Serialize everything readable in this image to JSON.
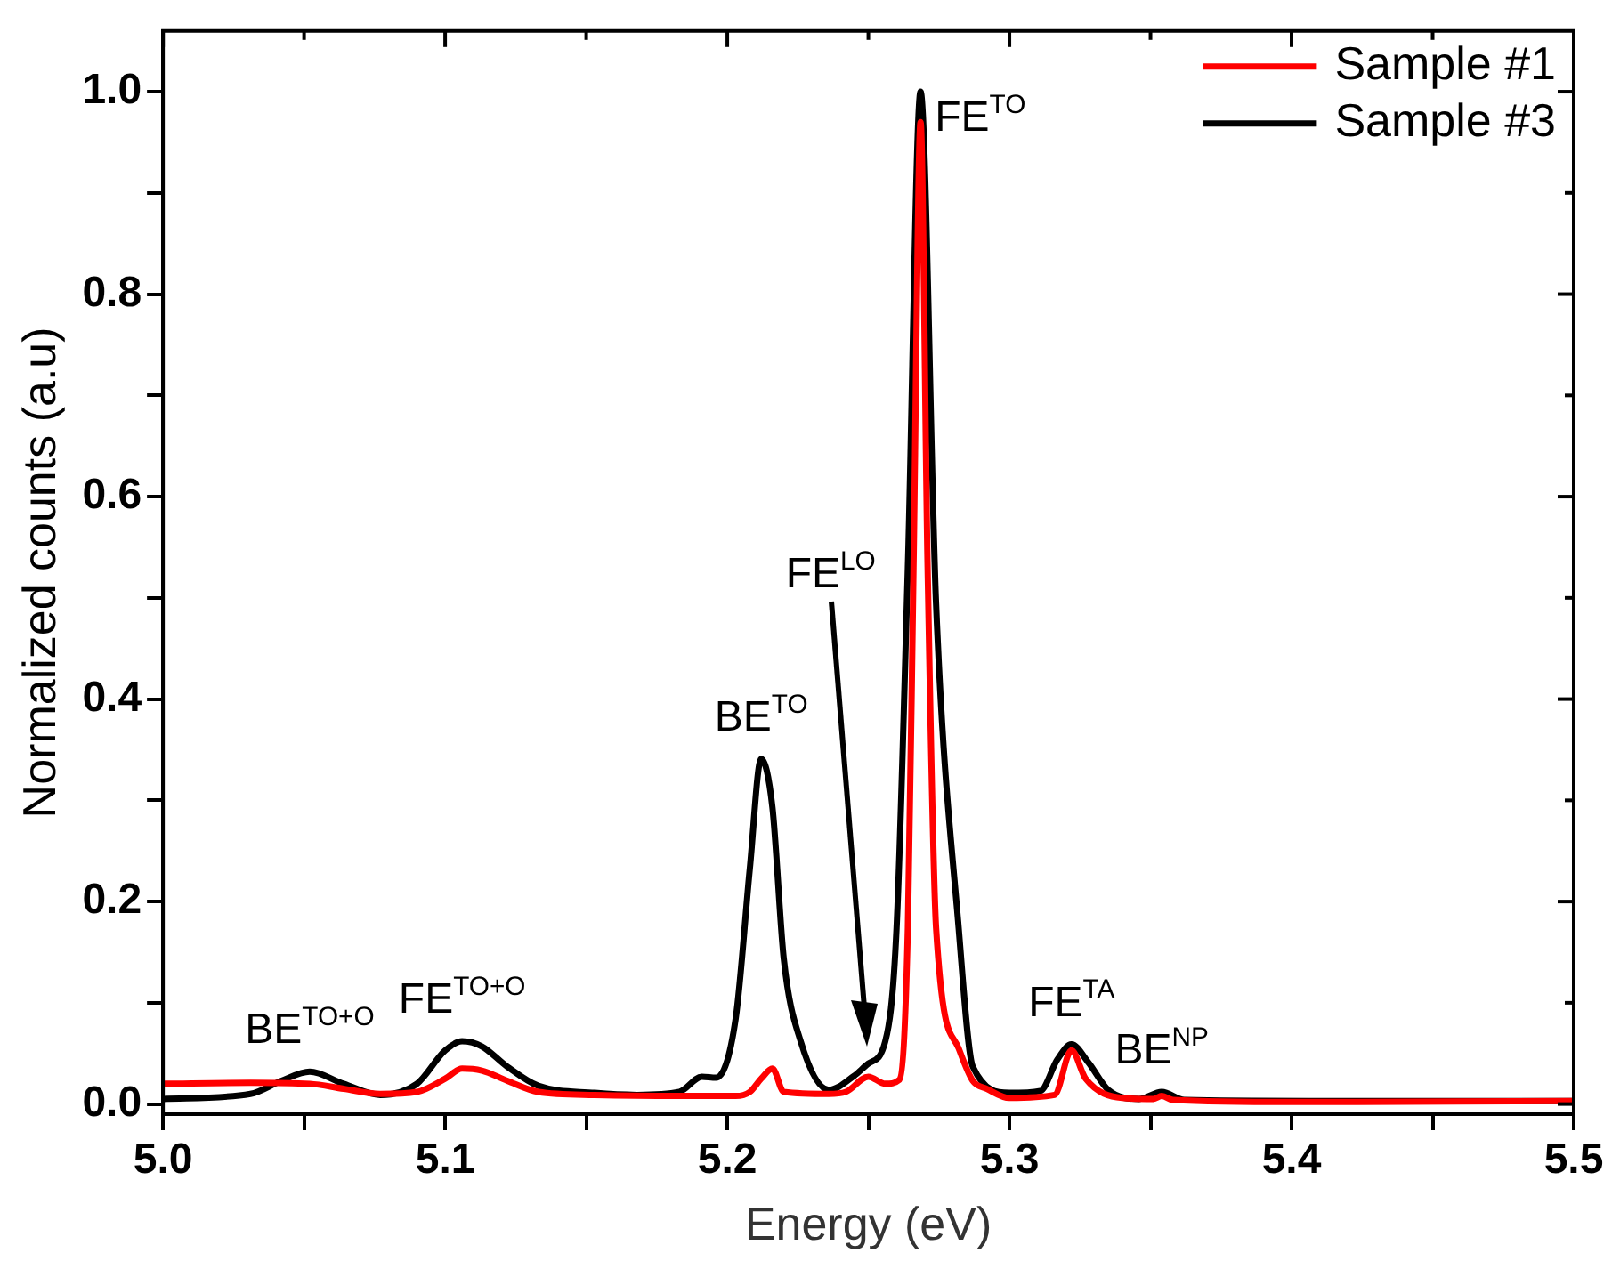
{
  "chart_data": {
    "type": "line",
    "xlabel": "Energy (eV)",
    "ylabel": "Normalized counts (a.u)",
    "xlim": [
      5.0,
      5.5
    ],
    "ylim": [
      -0.01,
      1.06
    ],
    "xticks": [
      {
        "value": 5.0,
        "label": "5.0"
      },
      {
        "value": 5.05,
        "label": null
      },
      {
        "value": 5.1,
        "label": "5.1"
      },
      {
        "value": 5.15,
        "label": null
      },
      {
        "value": 5.2,
        "label": "5.2"
      },
      {
        "value": 5.25,
        "label": null
      },
      {
        "value": 5.3,
        "label": "5.3"
      },
      {
        "value": 5.35,
        "label": null
      },
      {
        "value": 5.4,
        "label": "5.4"
      },
      {
        "value": 5.45,
        "label": null
      },
      {
        "value": 5.5,
        "label": "5.5"
      }
    ],
    "yticks": [
      {
        "value": 0,
        "label": "0.0"
      },
      {
        "value": 0.1,
        "label": null
      },
      {
        "value": 0.2,
        "label": "0.2"
      },
      {
        "value": 0.3,
        "label": null
      },
      {
        "value": 0.4,
        "label": "0.4"
      },
      {
        "value": 0.5,
        "label": null
      },
      {
        "value": 0.6,
        "label": "0.6"
      },
      {
        "value": 0.7,
        "label": null
      },
      {
        "value": 0.8,
        "label": "0.8"
      },
      {
        "value": 0.9,
        "label": null
      },
      {
        "value": 1.0,
        "label": "1.0"
      }
    ],
    "grid": false,
    "legend": "top right",
    "marker": "none",
    "line_style": "solid",
    "series": [
      {
        "name": "Sample #1",
        "color": "#ff0000",
        "x": [
          5.0,
          5.031,
          5.052,
          5.064,
          5.077,
          5.09,
          5.1,
          5.106,
          5.113,
          5.122,
          5.133,
          5.153,
          5.183,
          5.203,
          5.208,
          5.212,
          5.216,
          5.22,
          5.236,
          5.242,
          5.25,
          5.256,
          5.261,
          5.264,
          5.266,
          5.2685,
          5.271,
          5.274,
          5.282,
          5.287,
          5.292,
          5.3,
          5.316,
          5.322,
          5.327,
          5.34,
          5.351,
          5.354,
          5.358,
          5.4,
          5.5
        ],
        "values": [
          0.02,
          0.021,
          0.02,
          0.015,
          0.01,
          0.012,
          0.025,
          0.035,
          0.033,
          0.023,
          0.012,
          0.009,
          0.008,
          0.008,
          0.012,
          0.025,
          0.035,
          0.012,
          0.01,
          0.012,
          0.027,
          0.02,
          0.024,
          0.174,
          0.53,
          0.97,
          0.53,
          0.174,
          0.055,
          0.023,
          0.015,
          0.006,
          0.009,
          0.053,
          0.025,
          0.006,
          0.005,
          0.008,
          0.004,
          0.002,
          0.003
        ]
      },
      {
        "name": "Sample #3",
        "color": "#000000",
        "x": [
          5.0,
          5.031,
          5.042,
          5.052,
          5.064,
          5.077,
          5.09,
          5.1,
          5.106,
          5.113,
          5.122,
          5.133,
          5.153,
          5.168,
          5.183,
          5.191,
          5.196,
          5.203,
          5.208,
          5.212,
          5.216,
          5.22,
          5.226,
          5.236,
          5.245,
          5.25,
          5.256,
          5.26,
          5.264,
          5.2685,
          5.274,
          5.282,
          5.287,
          5.3,
          5.311,
          5.317,
          5.322,
          5.328,
          5.335,
          5.346,
          5.354,
          5.362,
          5.406,
          5.5
        ],
        "values": [
          0.005,
          0.01,
          0.023,
          0.032,
          0.02,
          0.009,
          0.02,
          0.053,
          0.062,
          0.057,
          0.037,
          0.018,
          0.011,
          0.009,
          0.012,
          0.027,
          0.026,
          0.085,
          0.233,
          0.341,
          0.293,
          0.144,
          0.062,
          0.014,
          0.028,
          0.04,
          0.062,
          0.174,
          0.53,
          1.0,
          0.494,
          0.174,
          0.037,
          0.011,
          0.013,
          0.044,
          0.059,
          0.041,
          0.014,
          0.005,
          0.012,
          0.004,
          0.003,
          0.003
        ]
      }
    ],
    "annotations": [
      {
        "text": "BE$^{TO+O}$",
        "x": 5.052,
        "y": 0.032
      },
      {
        "text": "FE$^{TO+O}$",
        "x": 5.106,
        "y": 0.062
      },
      {
        "text": "BE$^{TO}$",
        "x": 5.212,
        "y": 0.341
      },
      "FE$^{LO}$",
      {
        "text": "FE$^{TO}$",
        "x": 5.2685,
        "y": 1.0
      },
      {
        "text": "FE$^{TA}$",
        "x": 5.322,
        "y": 0.059
      },
      {
        "text": "BE$^{NP}$",
        "x": 5.354,
        "y": 0.012
      }
    ]
  }
}
